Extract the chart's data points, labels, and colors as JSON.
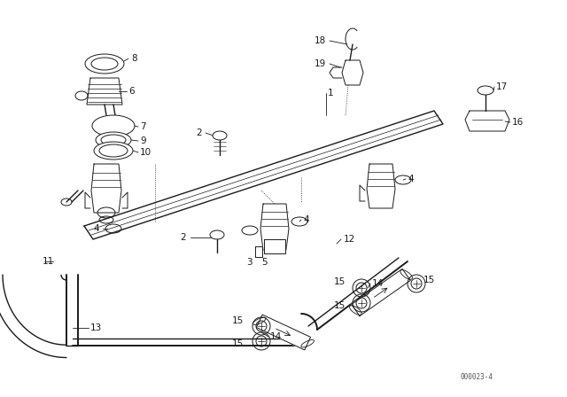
{
  "bg_color": "#ffffff",
  "line_color": "#1a1a1a",
  "diagram_code": "000023-4",
  "fig_w": 6.4,
  "fig_h": 4.48,
  "dpi": 100
}
